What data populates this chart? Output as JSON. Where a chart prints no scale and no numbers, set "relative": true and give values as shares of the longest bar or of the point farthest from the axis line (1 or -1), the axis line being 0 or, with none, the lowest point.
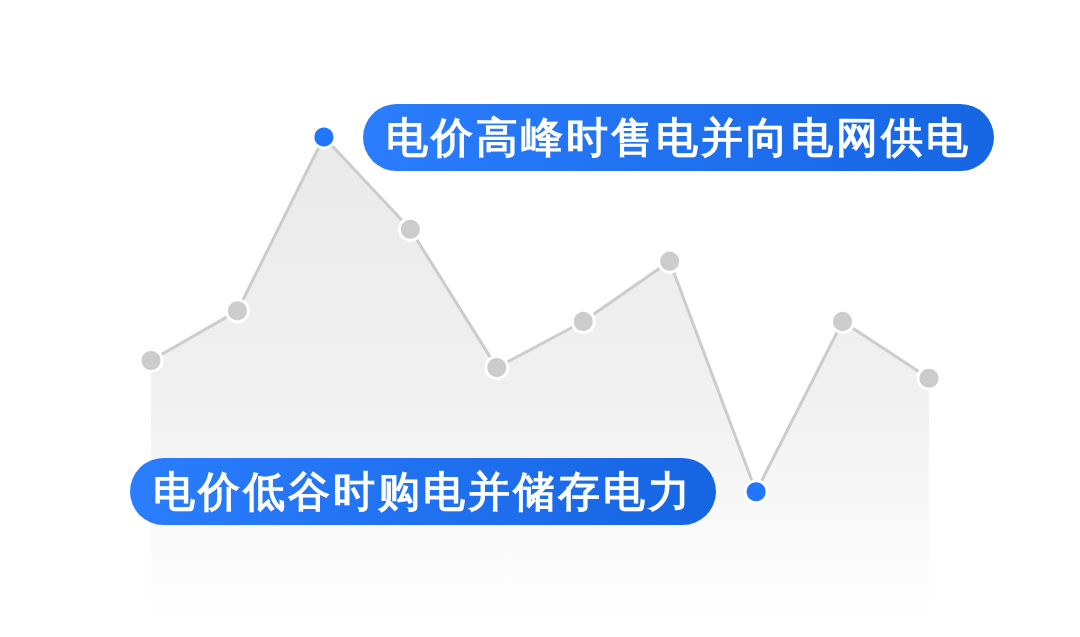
{
  "chart_data": {
    "type": "area",
    "relative": true,
    "categories": [
      null,
      null,
      null,
      null,
      null,
      null,
      null,
      null,
      null,
      null
    ],
    "series": [
      {
        "color": "#cccccc",
        "colors": [
          "#cccccc",
          "#cccccc",
          "#2176ff",
          "#cccccc",
          "#cccccc",
          "#cccccc",
          "#cccccc",
          "#2176ff",
          "#cccccc",
          "#cccccc"
        ],
        "values": [
          0.37,
          0.51,
          1,
          0.74,
          0.35,
          0.48,
          0.65,
          0,
          0.48,
          0.32
        ]
      }
    ],
    "marker": "circle",
    "line_style": "solid",
    "annotations": [
      "电价高峰时售电并向电网供电",
      "电价低谷时购电并储存电力"
    ]
  }
}
